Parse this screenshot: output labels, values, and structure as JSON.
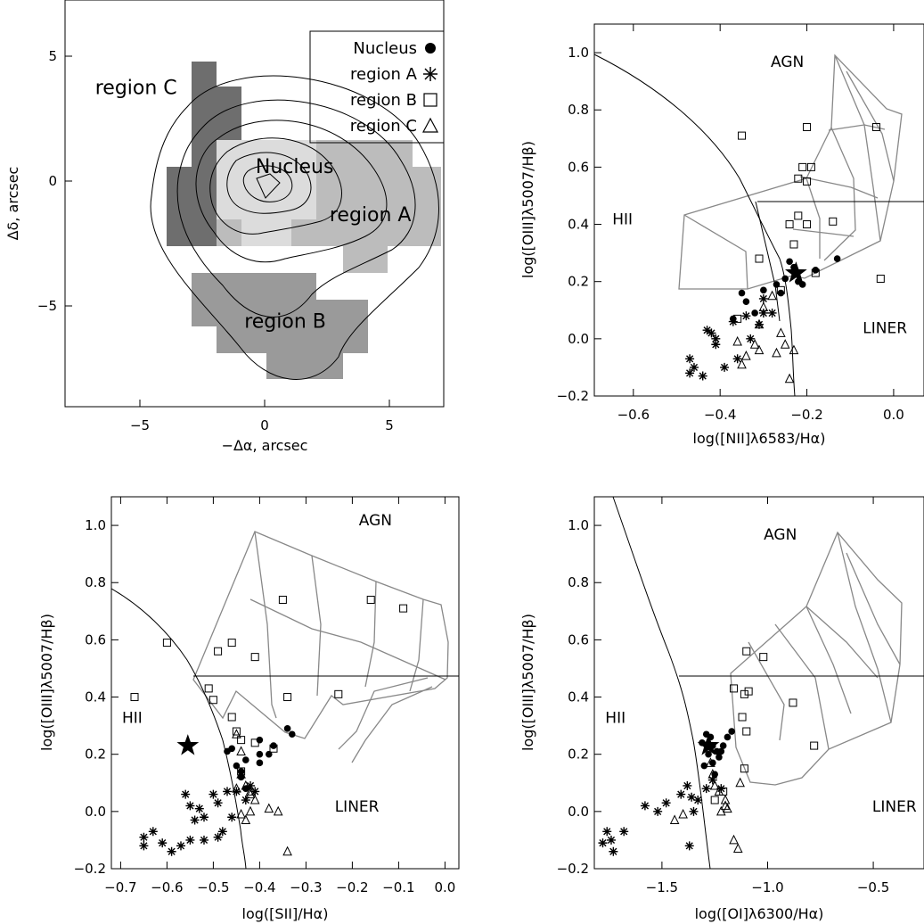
{
  "panels": [
    {
      "type": "contour_map",
      "xlabel": "−Δα, arcsec",
      "ylabel": "Δδ, arcsec",
      "xticks": [
        "−5",
        "0",
        "5"
      ],
      "yticks": [
        "5",
        "0",
        "−5"
      ],
      "xlim": [
        -8.5,
        7.5
      ],
      "ylim": [
        -9,
        7
      ],
      "legend": [
        {
          "label": "Nucleus",
          "marker": "filled-circle"
        },
        {
          "label": "region A",
          "marker": "asterisk"
        },
        {
          "label": "region B",
          "marker": "open-square"
        },
        {
          "label": "region C",
          "marker": "open-triangle"
        }
      ],
      "region_labels": [
        {
          "text": "region C",
          "x": -5.5,
          "y": 3.3
        },
        {
          "text": "Nucleus",
          "x": 1.2,
          "y": 0.2
        },
        {
          "text": "region A",
          "x": 4.4,
          "y": -1.7
        },
        {
          "text": "region B",
          "x": 0.8,
          "y": -5.9
        }
      ]
    },
    {
      "type": "scatter",
      "xlabel": "log([NII]λ6583/Hα)",
      "ylabel": "log([OIII]λ5007/Hβ)",
      "xticks": [
        "−0.6",
        "−0.4",
        "−0.2",
        "0.0"
      ],
      "yticks": [
        "1.0",
        "0.8",
        "0.6",
        "0.4",
        "0.2",
        "0.0",
        "−0.2"
      ],
      "xlim": [
        -0.69,
        0.07
      ],
      "ylim": [
        -0.2,
        1.1
      ],
      "class_labels": [
        {
          "text": "AGN",
          "x": -0.245,
          "y": 0.95
        },
        {
          "text": "HII",
          "x": -0.625,
          "y": 0.4
        },
        {
          "text": "LINER",
          "x": -0.02,
          "y": 0.02
        }
      ],
      "star": {
        "x": -0.225,
        "y": 0.23
      },
      "nucleus": [
        [
          -0.24,
          0.27
        ],
        [
          -0.23,
          0.25
        ],
        [
          -0.22,
          0.2
        ],
        [
          -0.25,
          0.21
        ],
        [
          -0.27,
          0.19
        ],
        [
          -0.3,
          0.17
        ],
        [
          -0.35,
          0.16
        ],
        [
          -0.34,
          0.13
        ],
        [
          -0.18,
          0.24
        ],
        [
          -0.13,
          0.28
        ],
        [
          -0.21,
          0.19
        ],
        [
          -0.26,
          0.16
        ],
        [
          -0.32,
          0.09
        ],
        [
          -0.37,
          0.07
        ]
      ],
      "region_A": [
        [
          -0.47,
          -0.07
        ],
        [
          -0.46,
          -0.1
        ],
        [
          -0.47,
          -0.12
        ],
        [
          -0.44,
          -0.13
        ],
        [
          -0.41,
          -0.02
        ],
        [
          -0.42,
          0.02
        ],
        [
          -0.39,
          -0.1
        ],
        [
          -0.36,
          -0.07
        ],
        [
          -0.34,
          0.08
        ],
        [
          -0.37,
          0.06
        ],
        [
          -0.33,
          0.0
        ],
        [
          -0.31,
          0.05
        ],
        [
          -0.3,
          0.09
        ],
        [
          -0.28,
          0.09
        ],
        [
          -0.3,
          0.14
        ],
        [
          -0.43,
          0.03
        ],
        [
          -0.41,
          0.0
        ]
      ],
      "region_B": [
        [
          -0.35,
          0.71
        ],
        [
          -0.2,
          0.74
        ],
        [
          -0.04,
          0.74
        ],
        [
          -0.21,
          0.6
        ],
        [
          -0.19,
          0.6
        ],
        [
          -0.2,
          0.55
        ],
        [
          -0.22,
          0.56
        ],
        [
          -0.22,
          0.43
        ],
        [
          -0.24,
          0.4
        ],
        [
          -0.2,
          0.4
        ],
        [
          -0.23,
          0.33
        ],
        [
          -0.31,
          0.28
        ],
        [
          -0.14,
          0.41
        ],
        [
          -0.18,
          0.23
        ],
        [
          -0.03,
          0.21
        ],
        [
          -0.36,
          0.07
        ],
        [
          -0.26,
          0.17
        ]
      ],
      "region_C": [
        [
          -0.28,
          0.15
        ],
        [
          -0.3,
          0.11
        ],
        [
          -0.31,
          0.05
        ],
        [
          -0.26,
          0.02
        ],
        [
          -0.23,
          -0.04
        ],
        [
          -0.25,
          -0.02
        ],
        [
          -0.27,
          -0.05
        ],
        [
          -0.32,
          -0.02
        ],
        [
          -0.34,
          -0.06
        ],
        [
          -0.36,
          -0.01
        ],
        [
          -0.35,
          -0.09
        ],
        [
          -0.31,
          -0.04
        ],
        [
          -0.24,
          -0.14
        ]
      ]
    },
    {
      "type": "scatter",
      "xlabel": "log([SII]/Hα)",
      "ylabel": "log([OIII]λ5007/Hβ)",
      "xticks": [
        "−0.7",
        "−0.6",
        "−0.5",
        "−0.4",
        "−0.3",
        "−0.2",
        "−0.1",
        "0.0"
      ],
      "yticks": [
        "1.0",
        "0.8",
        "0.6",
        "0.4",
        "0.2",
        "0.0",
        "−0.2"
      ],
      "xlim": [
        -0.72,
        0.03
      ],
      "ylim": [
        -0.2,
        1.1
      ],
      "class_labels": [
        {
          "text": "AGN",
          "x": -0.15,
          "y": 1.0
        },
        {
          "text": "HII",
          "x": -0.675,
          "y": 0.31
        },
        {
          "text": "LINER",
          "x": -0.19,
          "y": 0.0
        }
      ],
      "star": {
        "x": -0.555,
        "y": 0.23
      },
      "nucleus": [
        [
          -0.34,
          0.29
        ],
        [
          -0.33,
          0.27
        ],
        [
          -0.37,
          0.23
        ],
        [
          -0.38,
          0.2
        ],
        [
          -0.4,
          0.17
        ],
        [
          -0.4,
          0.2
        ],
        [
          -0.43,
          0.18
        ],
        [
          -0.46,
          0.22
        ],
        [
          -0.45,
          0.16
        ],
        [
          -0.44,
          0.14
        ],
        [
          -0.44,
          0.12
        ],
        [
          -0.47,
          0.21
        ],
        [
          -0.43,
          0.08
        ],
        [
          -0.4,
          0.25
        ]
      ],
      "region_A": [
        [
          -0.65,
          -0.09
        ],
        [
          -0.65,
          -0.12
        ],
        [
          -0.63,
          -0.07
        ],
        [
          -0.61,
          -0.11
        ],
        [
          -0.59,
          -0.14
        ],
        [
          -0.56,
          0.06
        ],
        [
          -0.55,
          0.02
        ],
        [
          -0.54,
          -0.03
        ],
        [
          -0.52,
          -0.1
        ],
        [
          -0.52,
          -0.02
        ],
        [
          -0.53,
          0.01
        ],
        [
          -0.5,
          0.06
        ],
        [
          -0.49,
          0.03
        ],
        [
          -0.48,
          -0.07
        ],
        [
          -0.47,
          0.07
        ],
        [
          -0.46,
          -0.02
        ],
        [
          -0.45,
          0.07
        ],
        [
          -0.43,
          0.04
        ],
        [
          -0.42,
          0.09
        ],
        [
          -0.41,
          0.07
        ],
        [
          -0.57,
          -0.12
        ],
        [
          -0.55,
          -0.1
        ],
        [
          -0.49,
          -0.09
        ]
      ],
      "region_B": [
        [
          -0.67,
          0.4
        ],
        [
          -0.6,
          0.59
        ],
        [
          -0.49,
          0.56
        ],
        [
          -0.46,
          0.59
        ],
        [
          -0.41,
          0.54
        ],
        [
          -0.35,
          0.74
        ],
        [
          -0.16,
          0.74
        ],
        [
          -0.09,
          0.71
        ],
        [
          -0.51,
          0.43
        ],
        [
          -0.5,
          0.39
        ],
        [
          -0.46,
          0.33
        ],
        [
          -0.45,
          0.28
        ],
        [
          -0.44,
          0.25
        ],
        [
          -0.44,
          0.14
        ],
        [
          -0.41,
          0.24
        ],
        [
          -0.37,
          0.22
        ],
        [
          -0.34,
          0.4
        ],
        [
          -0.23,
          0.41
        ]
      ],
      "region_C": [
        [
          -0.45,
          0.27
        ],
        [
          -0.44,
          0.21
        ],
        [
          -0.44,
          0.13
        ],
        [
          -0.43,
          0.09
        ],
        [
          -0.45,
          0.08
        ],
        [
          -0.42,
          0.06
        ],
        [
          -0.41,
          0.04
        ],
        [
          -0.42,
          0.0
        ],
        [
          -0.43,
          -0.03
        ],
        [
          -0.44,
          -0.01
        ],
        [
          -0.38,
          0.01
        ],
        [
          -0.36,
          0.0
        ],
        [
          -0.34,
          -0.14
        ],
        [
          -0.42,
          0.07
        ]
      ]
    },
    {
      "type": "scatter",
      "xlabel": "log([OI]λ6300/Hα)",
      "ylabel": "log([OIII]λ5007/Hβ)",
      "xticks": [
        "−1.5",
        "−1.0",
        "−0.5"
      ],
      "yticks": [
        "1.0",
        "0.8",
        "0.6",
        "0.4",
        "0.2",
        "0.0",
        "−0.2"
      ],
      "xlim": [
        -1.82,
        -0.26
      ],
      "ylim": [
        -0.2,
        1.1
      ],
      "class_labels": [
        {
          "text": "AGN",
          "x": -0.94,
          "y": 0.95
        },
        {
          "text": "HII",
          "x": -1.72,
          "y": 0.31
        },
        {
          "text": "LINER",
          "x": -0.4,
          "y": 0.0
        }
      ],
      "star": {
        "x": -1.28,
        "y": 0.23
      },
      "nucleus": [
        [
          -1.17,
          0.28
        ],
        [
          -1.19,
          0.26
        ],
        [
          -1.21,
          0.23
        ],
        [
          -1.24,
          0.21
        ],
        [
          -1.27,
          0.26
        ],
        [
          -1.28,
          0.2
        ],
        [
          -1.3,
          0.16
        ],
        [
          -1.26,
          0.17
        ],
        [
          -1.25,
          0.13
        ],
        [
          -1.31,
          0.24
        ],
        [
          -1.29,
          0.27
        ],
        [
          -1.23,
          0.19
        ],
        [
          -1.22,
          0.21
        ],
        [
          -1.26,
          0.23
        ]
      ],
      "region_A": [
        [
          -1.78,
          -0.11
        ],
        [
          -1.76,
          -0.07
        ],
        [
          -1.74,
          -0.1
        ],
        [
          -1.73,
          -0.14
        ],
        [
          -1.68,
          -0.07
        ],
        [
          -1.58,
          0.02
        ],
        [
          -1.52,
          0.0
        ],
        [
          -1.48,
          0.03
        ],
        [
          -1.41,
          0.06
        ],
        [
          -1.38,
          0.09
        ],
        [
          -1.36,
          0.05
        ],
        [
          -1.35,
          0.0
        ],
        [
          -1.33,
          0.04
        ],
        [
          -1.29,
          0.08
        ],
        [
          -1.26,
          0.11
        ],
        [
          -1.22,
          0.08
        ],
        [
          -1.37,
          -0.12
        ]
      ],
      "region_B": [
        [
          -1.1,
          0.56
        ],
        [
          -1.02,
          0.54
        ],
        [
          -1.16,
          0.43
        ],
        [
          -1.09,
          0.42
        ],
        [
          -1.11,
          0.41
        ],
        [
          -0.88,
          0.38
        ],
        [
          -1.12,
          0.33
        ],
        [
          -1.1,
          0.28
        ],
        [
          -0.78,
          0.23
        ],
        [
          -1.11,
          0.15
        ],
        [
          -1.21,
          0.07
        ],
        [
          -1.25,
          0.04
        ]
      ],
      "region_C": [
        [
          -1.27,
          0.17
        ],
        [
          -1.26,
          0.13
        ],
        [
          -1.25,
          0.09
        ],
        [
          -1.23,
          0.07
        ],
        [
          -1.2,
          0.04
        ],
        [
          -1.2,
          0.02
        ],
        [
          -1.19,
          0.01
        ],
        [
          -1.22,
          0.0
        ],
        [
          -1.13,
          0.1
        ],
        [
          -1.44,
          -0.03
        ],
        [
          -1.4,
          -0.01
        ],
        [
          -1.16,
          -0.1
        ],
        [
          -1.14,
          -0.13
        ]
      ]
    }
  ],
  "colors": {
    "contour": "#000000",
    "model_grid": "#888888",
    "region_C_fill": "#6e6e6e",
    "region_B_fill": "#9a9a9a",
    "region_A_fill": "#bcbcbc",
    "nucleus_fill": "#dcdcdc"
  }
}
